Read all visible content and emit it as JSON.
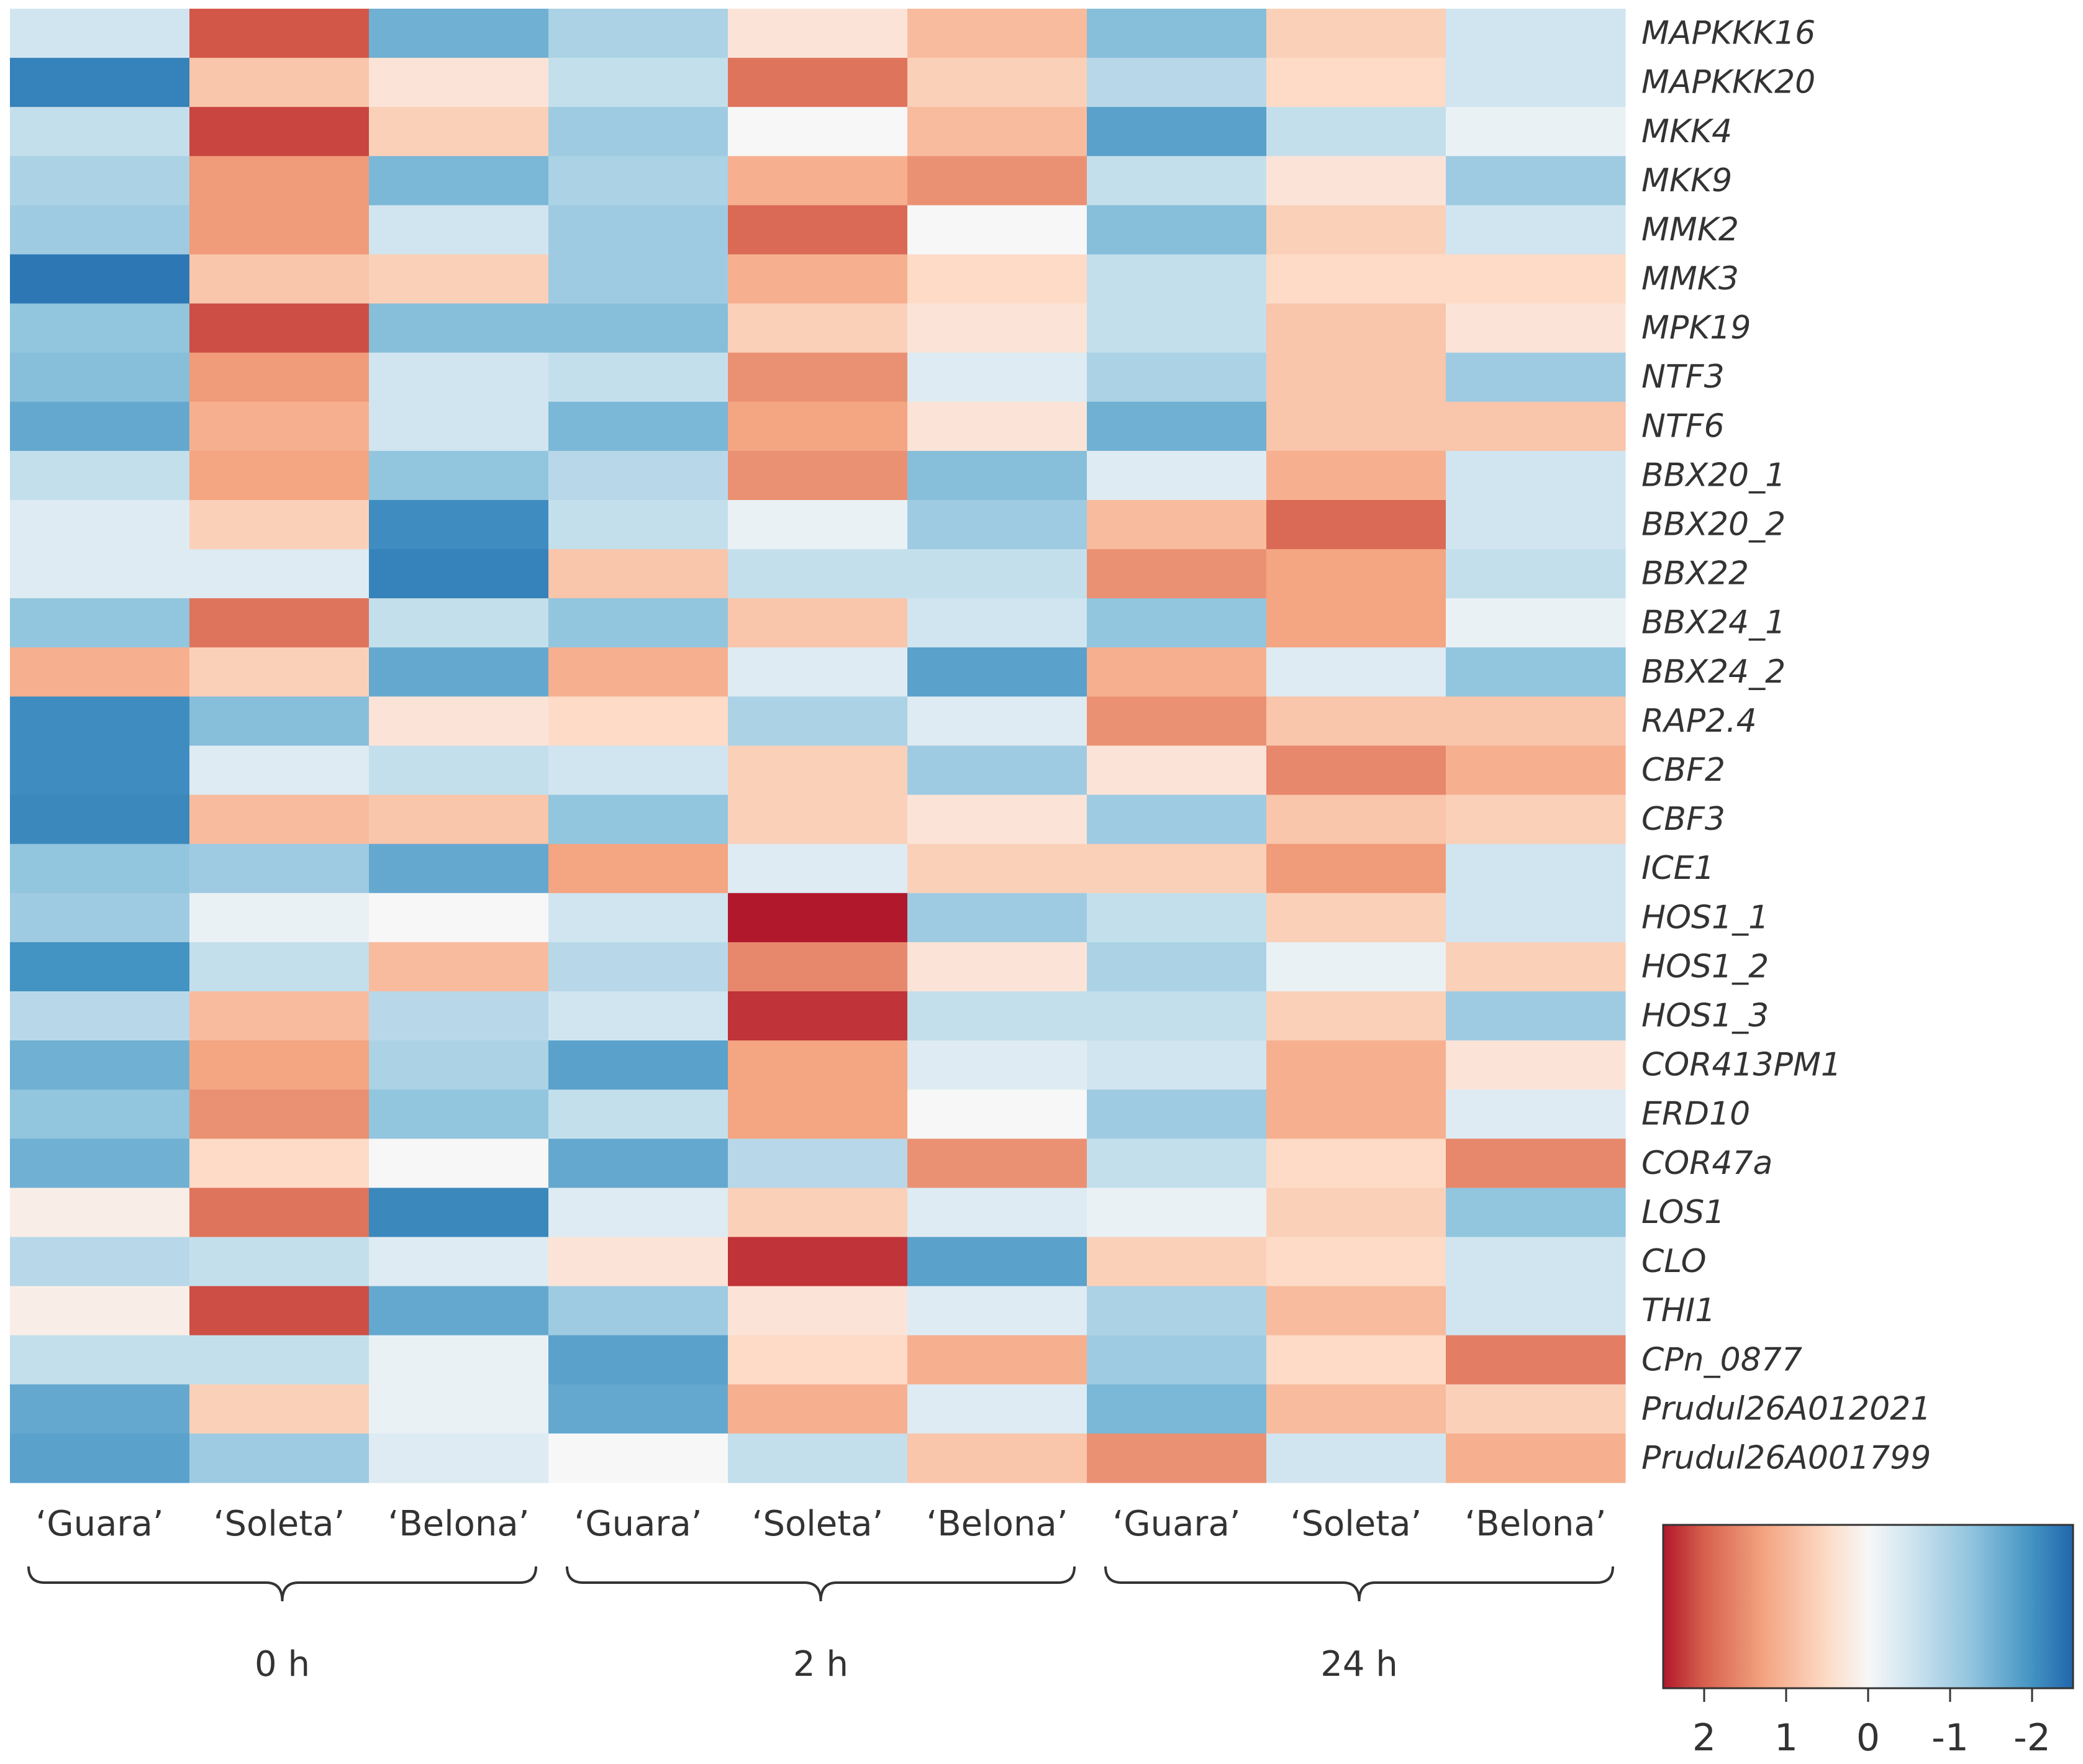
{
  "chart_data": {
    "type": "heatmap",
    "title": "",
    "rows": [
      "MAPKKK16",
      "MAPKKK20",
      "MKK4",
      "MKK9",
      "MMK2",
      "MMK3",
      "MPK19",
      "NTF3",
      "NTF6",
      "BBX20_1",
      "BBX20_2",
      "BBX22",
      "BBX24_1",
      "BBX24_2",
      "RAP2.4",
      "CBF2",
      "CBF3",
      "ICE1",
      "HOS1_1",
      "HOS1_2",
      "HOS1_3",
      "COR413PM1",
      "ERD10",
      "COR47a",
      "LOS1",
      "CLO",
      "THI1",
      "CPn_0877",
      "Prudul26A012021",
      "Prudul26A001799"
    ],
    "columns": [
      "‘Guara’",
      "‘Soleta’",
      "‘Belona’",
      "‘Guara’",
      "‘Soleta’",
      "‘Belona’",
      "‘Guara’",
      "‘Soleta’",
      "‘Belona’"
    ],
    "groups": [
      {
        "label": "0 h",
        "span": [
          0,
          2
        ]
      },
      {
        "label": "2 h",
        "span": [
          3,
          5
        ]
      },
      {
        "label": "24 h",
        "span": [
          6,
          8
        ]
      }
    ],
    "values": [
      [
        -0.3,
        1.6,
        -1.1,
        -0.6,
        0.2,
        0.6,
        -0.9,
        0.4,
        -0.3
      ],
      [
        -1.8,
        0.5,
        0.2,
        -0.4,
        1.3,
        0.4,
        -0.5,
        0.3,
        -0.3
      ],
      [
        -0.4,
        1.8,
        0.4,
        -0.7,
        0.0,
        0.6,
        -1.3,
        -0.4,
        -0.1
      ],
      [
        -0.6,
        0.9,
        -1.0,
        -0.6,
        0.7,
        1.0,
        -0.4,
        0.2,
        -0.7
      ],
      [
        -0.7,
        0.9,
        -0.3,
        -0.7,
        1.4,
        0.0,
        -0.9,
        0.4,
        -0.3
      ],
      [
        -2.0,
        0.5,
        0.4,
        -0.7,
        0.7,
        0.3,
        -0.4,
        0.3,
        0.3
      ],
      [
        -0.8,
        1.7,
        -0.9,
        -0.9,
        0.4,
        0.2,
        -0.4,
        0.5,
        0.2
      ],
      [
        -0.9,
        0.9,
        -0.3,
        -0.4,
        1.0,
        -0.2,
        -0.6,
        0.5,
        -0.7
      ],
      [
        -1.2,
        0.7,
        -0.3,
        -1.0,
        0.8,
        0.2,
        -1.1,
        0.5,
        0.5
      ],
      [
        -0.4,
        0.8,
        -0.8,
        -0.5,
        1.0,
        -0.9,
        -0.2,
        0.7,
        -0.3
      ],
      [
        -0.2,
        0.4,
        -1.6,
        -0.4,
        -0.1,
        -0.7,
        0.6,
        1.4,
        -0.3
      ],
      [
        -0.2,
        -0.2,
        -1.8,
        0.5,
        -0.4,
        -0.4,
        1.0,
        0.8,
        -0.4
      ],
      [
        -0.8,
        1.3,
        -0.4,
        -0.8,
        0.5,
        -0.3,
        -0.8,
        0.8,
        -0.1
      ],
      [
        0.7,
        0.4,
        -1.2,
        0.7,
        -0.2,
        -1.3,
        0.7,
        -0.2,
        -0.8
      ],
      [
        -1.6,
        -0.9,
        0.2,
        0.3,
        -0.6,
        -0.2,
        1.0,
        0.5,
        0.5
      ],
      [
        -1.6,
        -0.2,
        -0.4,
        -0.3,
        0.4,
        -0.7,
        0.2,
        1.1,
        0.7
      ],
      [
        -1.7,
        0.6,
        0.5,
        -0.8,
        0.4,
        0.2,
        -0.7,
        0.5,
        0.4
      ],
      [
        -0.8,
        -0.7,
        -1.2,
        0.8,
        -0.2,
        0.4,
        0.4,
        0.9,
        -0.3
      ],
      [
        -0.7,
        -0.1,
        0.0,
        -0.3,
        2.3,
        -0.7,
        -0.4,
        0.4,
        -0.3
      ],
      [
        -1.5,
        -0.4,
        0.6,
        -0.5,
        1.1,
        0.2,
        -0.6,
        -0.1,
        0.4
      ],
      [
        -0.5,
        0.6,
        -0.5,
        -0.3,
        2.0,
        -0.4,
        -0.4,
        0.4,
        -0.7
      ],
      [
        -1.1,
        0.8,
        -0.6,
        -1.3,
        0.8,
        -0.2,
        -0.3,
        0.7,
        0.2
      ],
      [
        -0.8,
        1.0,
        -0.8,
        -0.4,
        0.8,
        0.0,
        -0.7,
        0.7,
        -0.2
      ],
      [
        -1.1,
        0.3,
        0.0,
        -1.2,
        -0.5,
        1.0,
        -0.4,
        0.3,
        1.1
      ],
      [
        0.1,
        1.3,
        -1.7,
        -0.2,
        0.4,
        -0.2,
        -0.1,
        0.4,
        -0.8
      ],
      [
        -0.5,
        -0.4,
        -0.2,
        0.2,
        2.0,
        -1.3,
        0.4,
        0.3,
        -0.3
      ],
      [
        0.1,
        1.7,
        -1.2,
        -0.7,
        0.2,
        -0.2,
        -0.6,
        0.6,
        -0.3
      ],
      [
        -0.4,
        -0.4,
        -0.1,
        -1.3,
        0.3,
        0.7,
        -0.7,
        0.3,
        1.2
      ],
      [
        -1.2,
        0.4,
        -0.1,
        -1.2,
        0.7,
        -0.2,
        -1.0,
        0.6,
        0.4
      ],
      [
        -1.3,
        -0.7,
        -0.2,
        0.0,
        -0.4,
        0.5,
        1.0,
        -0.3,
        0.7
      ]
    ],
    "colorbar": {
      "range": [
        2.5,
        -2.5
      ],
      "ticks": [
        2,
        1,
        0,
        -1,
        -2
      ],
      "tick_labels": [
        "2",
        "1",
        "0",
        "-1",
        "-2"
      ],
      "colors": {
        "high": "#b2182b",
        "mid": "#f7f7f7",
        "low": "#2166ac"
      }
    }
  }
}
